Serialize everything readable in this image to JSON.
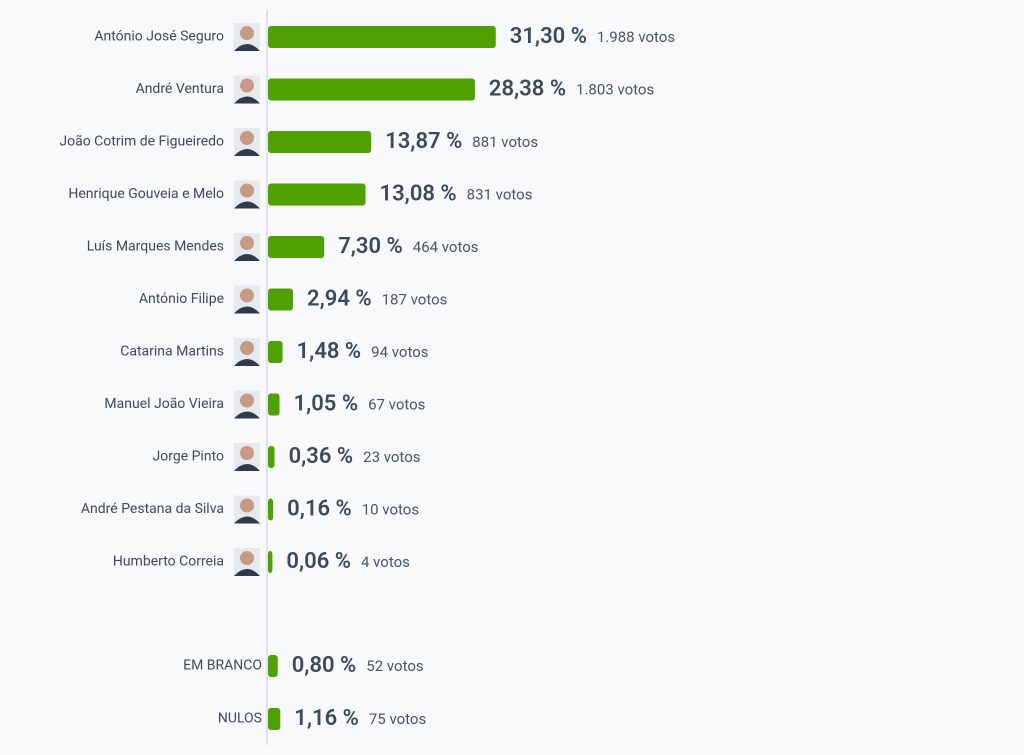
{
  "chart_data": [
    {
      "type": "bar",
      "orientation": "horizontal",
      "color": "#4ea100",
      "xlim": [
        0,
        100
      ],
      "photos": true,
      "categories": [
        "António José Seguro",
        "André Ventura",
        "João Cotrim de Figueiredo",
        "Henrique Gouveia e Melo",
        "Luís Marques Mendes",
        "António Filipe",
        "Catarina Martins",
        "Manuel João Vieira",
        "Jorge Pinto",
        "André Pestana da Silva",
        "Humberto Correia"
      ],
      "values": [
        31.3,
        28.38,
        13.87,
        13.08,
        7.3,
        2.94,
        1.48,
        1.05,
        0.36,
        0.16,
        0.06
      ],
      "value_labels": [
        "31,30 %",
        "28,38 %",
        "13,87 %",
        "13,08 %",
        "7,30 %",
        "2,94 %",
        "1,48 %",
        "1,05 %",
        "0,36 %",
        "0,16 %",
        "0,06 %"
      ],
      "votes": [
        1988,
        1803,
        881,
        831,
        464,
        187,
        94,
        67,
        23,
        10,
        4
      ],
      "vote_labels": [
        "1.988 votos",
        "1.803 votos",
        "881 votos",
        "831 votos",
        "464 votos",
        "187 votos",
        "94 votos",
        "67 votos",
        "23 votos",
        "10 votos",
        "4 votos"
      ]
    },
    {
      "type": "bar",
      "orientation": "horizontal",
      "color": "#4ea100",
      "xlim": [
        0,
        100
      ],
      "photos": false,
      "categories": [
        "EM BRANCO",
        "NULOS"
      ],
      "values": [
        0.8,
        1.16
      ],
      "value_labels": [
        "0,80 %",
        "1,16 %"
      ],
      "votes": [
        52,
        75
      ],
      "vote_labels": [
        "52 votos",
        "75 votos"
      ]
    }
  ]
}
